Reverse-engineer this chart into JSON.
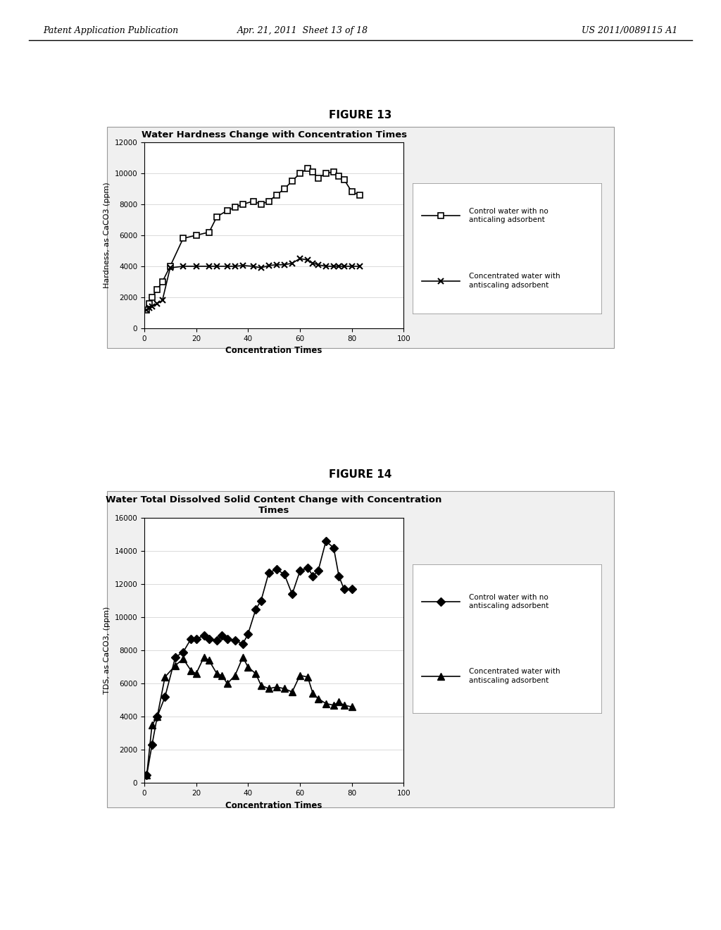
{
  "fig13": {
    "title": "Water Hardness Change with Concentration Times",
    "xlabel": "Concentration Times",
    "ylabel": "Hardness, as CaCO3 (ppm)",
    "xlim": [
      0,
      100
    ],
    "ylim": [
      0,
      12000
    ],
    "yticks": [
      0,
      2000,
      4000,
      6000,
      8000,
      10000,
      12000
    ],
    "xticks": [
      0,
      20,
      40,
      60,
      80,
      100
    ],
    "control_x": [
      1,
      2,
      3,
      5,
      7,
      10,
      15,
      20,
      25,
      28,
      32,
      35,
      38,
      42,
      45,
      48,
      51,
      54,
      57,
      60,
      63,
      65,
      67,
      70,
      73,
      75,
      77,
      80,
      83
    ],
    "control_y": [
      1200,
      1600,
      2000,
      2500,
      3000,
      4000,
      5800,
      6000,
      6200,
      7200,
      7600,
      7800,
      8000,
      8200,
      8000,
      8200,
      8600,
      9000,
      9500,
      10000,
      10300,
      10100,
      9700,
      10000,
      10100,
      9800,
      9600,
      8800,
      8600
    ],
    "adsorbent_x": [
      1,
      2,
      3,
      5,
      7,
      10,
      15,
      20,
      25,
      28,
      32,
      35,
      38,
      42,
      45,
      48,
      51,
      54,
      57,
      60,
      63,
      65,
      67,
      70,
      73,
      75,
      77,
      80,
      83
    ],
    "adsorbent_y": [
      1200,
      1300,
      1400,
      1600,
      1800,
      3900,
      4000,
      4000,
      4000,
      4000,
      4000,
      4000,
      4050,
      4000,
      3900,
      4050,
      4100,
      4100,
      4200,
      4500,
      4400,
      4200,
      4100,
      4000,
      4000,
      4000,
      4000,
      4000,
      4000
    ],
    "legend1": "Control water with no\nanticaling adsorbent",
    "legend2": "Concentrated water with\nantiscaling adsorbent",
    "figure_label": "FIGURE 13"
  },
  "fig14": {
    "title": "Water Total Dissolved Solid Content Change with Concentration\nTimes",
    "xlabel": "Concentration Times",
    "ylabel": "TDS, as CaCO3, (ppm)",
    "xlim": [
      0,
      100
    ],
    "ylim": [
      0,
      16000
    ],
    "yticks": [
      0,
      2000,
      4000,
      6000,
      8000,
      10000,
      12000,
      14000,
      16000
    ],
    "xticks": [
      0,
      20,
      40,
      60,
      80,
      100
    ],
    "control_x": [
      1,
      3,
      5,
      8,
      12,
      15,
      18,
      20,
      23,
      25,
      28,
      30,
      32,
      35,
      38,
      40,
      43,
      45,
      48,
      51,
      54,
      57,
      60,
      63,
      65,
      67,
      70,
      73,
      75,
      77,
      80
    ],
    "control_y": [
      500,
      2300,
      4000,
      5200,
      7600,
      7900,
      8700,
      8700,
      8900,
      8700,
      8600,
      8900,
      8700,
      8600,
      8400,
      9000,
      10500,
      11000,
      12700,
      12900,
      12600,
      11400,
      12800,
      13000,
      12500,
      12800,
      14600,
      14200,
      12500,
      11700,
      11700
    ],
    "adsorbent_x": [
      1,
      3,
      5,
      8,
      12,
      15,
      18,
      20,
      23,
      25,
      28,
      30,
      32,
      35,
      38,
      40,
      43,
      45,
      48,
      51,
      54,
      57,
      60,
      63,
      65,
      67,
      70,
      73,
      75,
      77,
      80
    ],
    "adsorbent_y": [
      500,
      3500,
      4000,
      6400,
      7100,
      7500,
      6800,
      6600,
      7600,
      7400,
      6600,
      6500,
      6000,
      6500,
      7600,
      7000,
      6600,
      5900,
      5700,
      5800,
      5700,
      5500,
      6500,
      6400,
      5400,
      5100,
      4800,
      4700,
      4900,
      4700,
      4600
    ],
    "legend1": "Control water with no\nantiscaling adsorbent",
    "legend2": "Concentrated water with\nantiscaling adsorbent",
    "figure_label": "FIGURE 14"
  },
  "header_left": "Patent Application Publication",
  "header_mid": "Apr. 21, 2011  Sheet 13 of 18",
  "header_right": "US 2011/0089115 A1",
  "bg_color": "#ffffff"
}
